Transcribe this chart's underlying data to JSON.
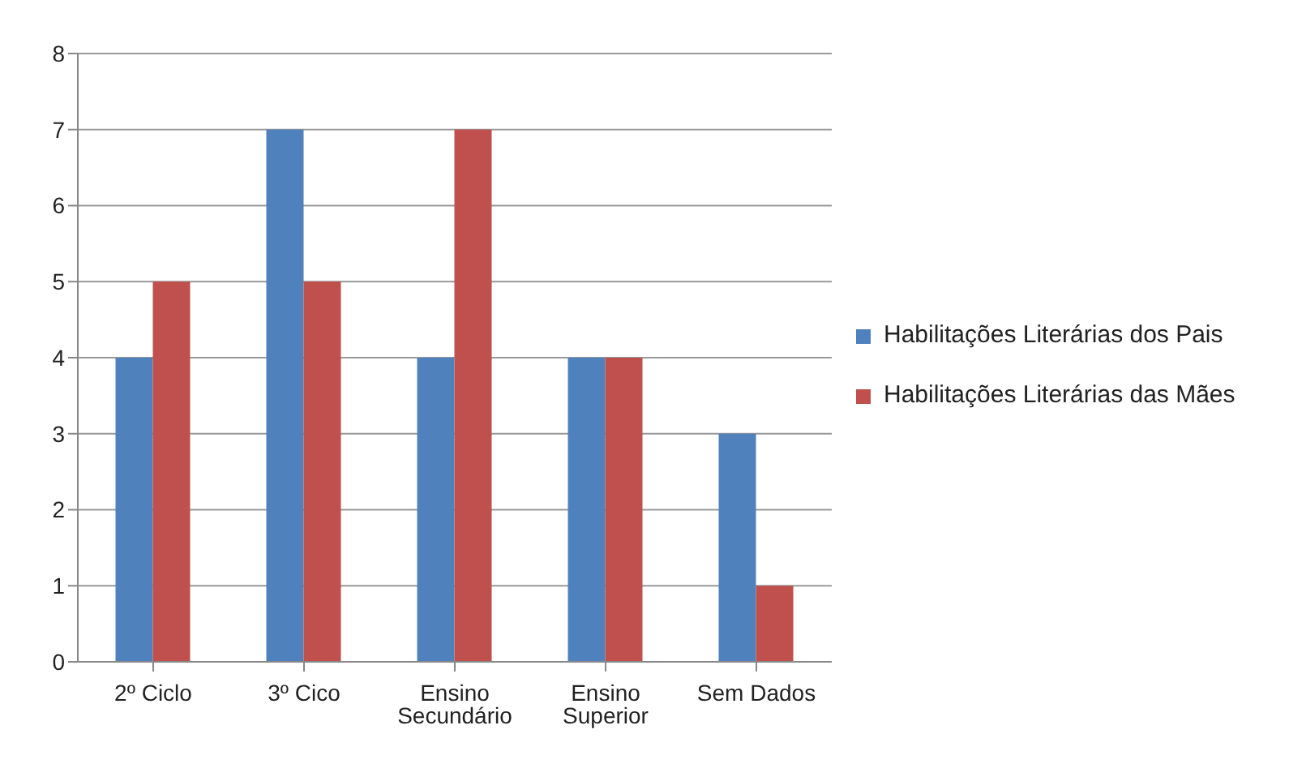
{
  "chart_data": {
    "type": "bar",
    "categories": [
      "2º Ciclo",
      "3º Cico",
      "Ensino Secundário",
      "Ensino Superior",
      "Sem Dados"
    ],
    "series": [
      {
        "name": "Habilitações Literárias dos Pais",
        "color": "#4f81bd",
        "values": [
          4,
          7,
          4,
          4,
          3
        ]
      },
      {
        "name": "Habilitações Literárias das Mães",
        "color": "#c0504d",
        "values": [
          5,
          5,
          7,
          4,
          1
        ]
      }
    ],
    "ylim": [
      0,
      8
    ],
    "yticks": [
      0,
      1,
      2,
      3,
      4,
      5,
      6,
      7,
      8
    ],
    "grid": "y",
    "legend": "right"
  }
}
